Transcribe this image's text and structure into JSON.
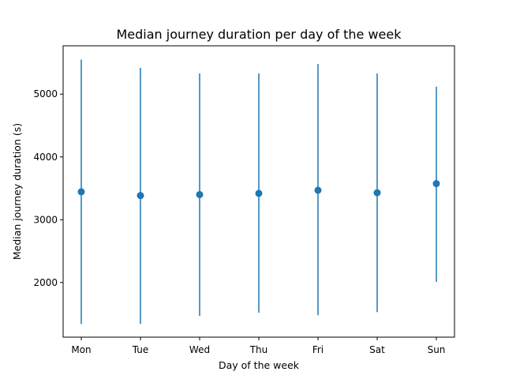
{
  "chart_data": {
    "type": "errorbar",
    "title": "Median journey duration per day of the week",
    "xlabel": "Day of the week",
    "ylabel": "Median journey duration (s)",
    "categories": [
      "Mon",
      "Tue",
      "Wed",
      "Thu",
      "Fri",
      "Sat",
      "Sun"
    ],
    "values": [
      3445,
      3385,
      3400,
      3420,
      3470,
      3430,
      3575
    ],
    "error_low": [
      1340,
      1340,
      1470,
      1520,
      1480,
      1530,
      2010
    ],
    "error_high": [
      5550,
      5420,
      5330,
      5330,
      5480,
      5330,
      5120
    ],
    "ylim": [
      1130,
      5770
    ],
    "yticks": [
      2000,
      3000,
      4000,
      5000
    ],
    "grid": false,
    "colors": {
      "series": "#1f77b4"
    }
  }
}
